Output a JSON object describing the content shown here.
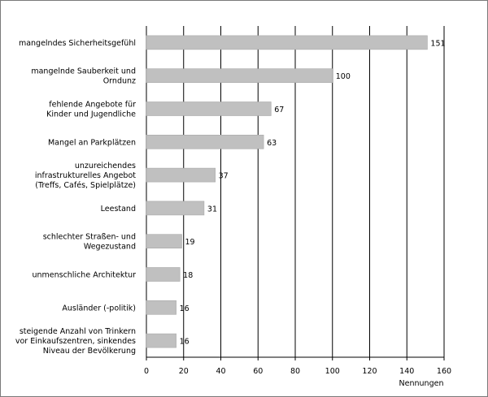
{
  "chart_data": {
    "type": "bar",
    "orientation": "horizontal",
    "categories": [
      [
        "mangelndes Sicherheitsgefühl"
      ],
      [
        "mangelnde Sauberkeit und",
        "Orndunz"
      ],
      [
        "fehlende Angebote für",
        "Kinder und Jugendliche"
      ],
      [
        "Mangel an Parkplätzen"
      ],
      [
        "unzureichendes",
        "infrastrukturelles Angebot",
        "(Treffs, Cafés, Spielplätze)"
      ],
      [
        "Leestand"
      ],
      [
        "schlechter Straßen- und",
        "Wegezustand"
      ],
      [
        "unmenschliche Architektur"
      ],
      [
        "Ausländer (-politik)"
      ],
      [
        "steigende Anzahl von Trinkern",
        "vor Einkaufszentren, sinkendes",
        "Niveau der Bevölkerung"
      ]
    ],
    "values": [
      151,
      100,
      67,
      63,
      37,
      31,
      19,
      18,
      16,
      16
    ],
    "value_labels": [
      "151",
      "100",
      "67",
      "63",
      "37",
      "31",
      "19",
      "18",
      "16",
      "16"
    ],
    "xlabel": "Nennungen",
    "xlim": [
      0,
      160
    ],
    "xticks": [
      0,
      20,
      40,
      60,
      80,
      100,
      120,
      140,
      160
    ],
    "grid": "vertical",
    "bar_color": "#c0c0c0",
    "grid_color": "#000000"
  }
}
